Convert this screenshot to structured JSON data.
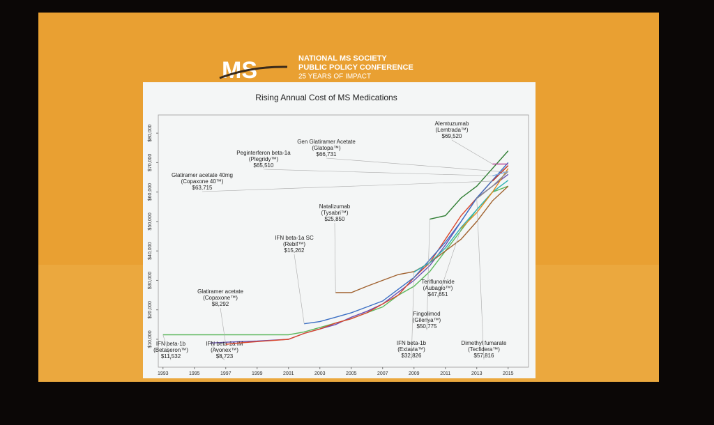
{
  "slide": {
    "logo": "MS",
    "org": "NATIONAL MS SOCIETY",
    "event": "PUBLIC POLICY CONFERENCE",
    "tagline": "25 YEARS OF IMPACT"
  },
  "chart_data": {
    "type": "line",
    "title": "Rising Annual Cost of MS Medications",
    "x": [
      1993,
      1994,
      1995,
      1996,
      1997,
      1998,
      1999,
      2000,
      2001,
      2002,
      2003,
      2004,
      2005,
      2006,
      2007,
      2008,
      2009,
      2010,
      2011,
      2012,
      2013,
      2014,
      2015
    ],
    "xlim": [
      1992.7,
      2016.3
    ],
    "xticks": [
      1993,
      1995,
      1997,
      1999,
      2001,
      2003,
      2005,
      2007,
      2009,
      2011,
      2013,
      2015
    ],
    "ylim": [
      1000,
      85000
    ],
    "yticks": [
      {
        "value": 10000,
        "label": "$10,000"
      },
      {
        "value": 20000,
        "label": "$20,000"
      },
      {
        "value": 30000,
        "label": "$30,000"
      },
      {
        "value": 40000,
        "label": "$40,000"
      },
      {
        "value": 50000,
        "label": "$50,000"
      },
      {
        "value": 60000,
        "label": "$60,000"
      },
      {
        "value": 70000,
        "label": "$70,000"
      },
      {
        "value": 80000,
        "label": "$80,000"
      }
    ],
    "series": [
      {
        "name": "IFN beta-1b",
        "brand": "(Betaseron™)",
        "color": "#5cb85c",
        "values": [
          11532,
          11532,
          11532,
          11532,
          11532,
          11532,
          11532,
          11532,
          11532,
          12500,
          14000,
          15500,
          17000,
          19000,
          21000,
          25000,
          28000,
          33000,
          40000,
          47000,
          54000,
          60000,
          62000
        ],
        "value_labels": [
          "$11,532",
          null,
          null,
          null,
          null,
          null,
          null,
          null,
          null,
          null,
          null,
          null,
          null,
          null,
          null,
          null,
          null,
          null,
          null,
          null,
          null,
          null,
          null
        ]
      },
      {
        "name": "IFN beta-1a IM",
        "brand": "(Avonex™)",
        "color": "#6a4fb3",
        "values": [
          null,
          null,
          null,
          8723,
          9000,
          9200,
          9400,
          9700,
          10000,
          12000,
          13500,
          15000,
          17500,
          19500,
          22000,
          26000,
          30000,
          35000,
          42000,
          50000,
          58000,
          62000,
          66000
        ],
        "value_labels": [
          null,
          null,
          null,
          "$8,723",
          null,
          null,
          null,
          null,
          null,
          null,
          null,
          null,
          null,
          null,
          null,
          null,
          null,
          null,
          null,
          null,
          null,
          null,
          null
        ]
      },
      {
        "name": "Glatiramer acetate",
        "brand": "(Copaxone™)",
        "color": "#d9462b",
        "values": [
          null,
          null,
          null,
          null,
          8292,
          8800,
          9200,
          9600,
          10000,
          12000,
          13500,
          15500,
          17000,
          19000,
          22000,
          25000,
          31000,
          36000,
          44000,
          52000,
          58000,
          64000,
          69000
        ],
        "value_labels": [
          null,
          null,
          null,
          null,
          "$8,292",
          null,
          null,
          null,
          null,
          null,
          null,
          null,
          null,
          null,
          null,
          null,
          null,
          null,
          null,
          null,
          null,
          null,
          null
        ]
      },
      {
        "name": "IFN beta-1a SC",
        "brand": "(Rebif™)",
        "color": "#3b6fc4",
        "values": [
          null,
          null,
          null,
          null,
          null,
          null,
          null,
          null,
          null,
          15262,
          16000,
          17500,
          19000,
          21000,
          23000,
          27000,
          31000,
          37000,
          43000,
          50000,
          58000,
          64000,
          70000
        ],
        "value_labels": [
          null,
          null,
          null,
          null,
          null,
          null,
          null,
          null,
          null,
          "$15,262",
          null,
          null,
          null,
          null,
          null,
          null,
          null,
          null,
          null,
          null,
          null,
          null,
          null
        ]
      },
      {
        "name": "Natalizumab",
        "brand": "(Tysabri™)",
        "color": "#a0612e",
        "values": [
          null,
          null,
          null,
          null,
          null,
          null,
          null,
          null,
          null,
          null,
          null,
          25850,
          25850,
          28000,
          30000,
          32000,
          33000,
          36000,
          40000,
          44000,
          50000,
          57000,
          62000
        ],
        "value_labels": [
          null,
          null,
          null,
          null,
          null,
          null,
          null,
          null,
          null,
          null,
          null,
          "$25,850",
          null,
          null,
          null,
          null,
          null,
          null,
          null,
          null,
          null,
          null,
          null
        ]
      },
      {
        "name": "IFN beta-1b",
        "brand": "(Extavia™)",
        "color": "#2fb3b3",
        "values": [
          null,
          null,
          null,
          null,
          null,
          null,
          null,
          null,
          null,
          null,
          null,
          null,
          null,
          null,
          null,
          null,
          32826,
          36000,
          41000,
          48000,
          54000,
          60000,
          64000
        ],
        "value_labels": [
          null,
          null,
          null,
          null,
          null,
          null,
          null,
          null,
          null,
          null,
          null,
          null,
          null,
          null,
          null,
          null,
          "$32,826",
          null,
          null,
          null,
          null,
          null,
          null
        ]
      },
      {
        "name": "Fingolimod",
        "brand": "(Gilenya™)",
        "color": "#2e7d32",
        "values": [
          null,
          null,
          null,
          null,
          null,
          null,
          null,
          null,
          null,
          null,
          null,
          null,
          null,
          null,
          null,
          null,
          null,
          50775,
          52000,
          58000,
          62000,
          68000,
          74000
        ],
        "value_labels": [
          null,
          null,
          null,
          null,
          null,
          null,
          null,
          null,
          null,
          null,
          null,
          null,
          null,
          null,
          null,
          null,
          null,
          "$50,775",
          null,
          null,
          null,
          null,
          null
        ]
      },
      {
        "name": "Teriflunomide",
        "brand": "(Aubagio™)",
        "color": "#e08a1e",
        "values": [
          null,
          null,
          null,
          null,
          null,
          null,
          null,
          null,
          null,
          null,
          null,
          null,
          null,
          null,
          null,
          null,
          null,
          null,
          null,
          47651,
          53000,
          60000,
          68000
        ],
        "value_labels": [
          null,
          null,
          null,
          null,
          null,
          null,
          null,
          null,
          null,
          null,
          null,
          null,
          null,
          null,
          null,
          null,
          null,
          null,
          null,
          "$47,651",
          null,
          null,
          null
        ]
      },
      {
        "name": "Dimethyl fumarate",
        "brand": "(Tecfidera™)",
        "color": "#8a8a8a",
        "values": [
          null,
          null,
          null,
          null,
          null,
          null,
          null,
          null,
          null,
          null,
          null,
          null,
          null,
          null,
          null,
          null,
          null,
          null,
          null,
          null,
          57816,
          62000,
          67000
        ],
        "value_labels": [
          null,
          null,
          null,
          null,
          null,
          null,
          null,
          null,
          null,
          null,
          null,
          null,
          null,
          null,
          null,
          null,
          null,
          null,
          null,
          null,
          "$57,816",
          null,
          null
        ]
      },
      {
        "name": "Glatiramer acetate 40mg",
        "brand": "(Copaxone 40™)",
        "color": "#c0392b",
        "values": [
          null,
          null,
          null,
          null,
          null,
          null,
          null,
          null,
          null,
          null,
          null,
          null,
          null,
          null,
          null,
          null,
          null,
          null,
          null,
          null,
          null,
          63715,
          69000
        ],
        "value_labels": [
          null,
          null,
          null,
          null,
          null,
          null,
          null,
          null,
          null,
          null,
          null,
          null,
          null,
          null,
          null,
          null,
          null,
          null,
          null,
          null,
          null,
          "$63,715",
          null
        ]
      },
      {
        "name": "Peginterferon beta-1a",
        "brand": "(Plegridy™)",
        "color": "#7fa7d9",
        "values": [
          null,
          null,
          null,
          null,
          null,
          null,
          null,
          null,
          null,
          null,
          null,
          null,
          null,
          null,
          null,
          null,
          null,
          null,
          null,
          null,
          null,
          65510,
          67000
        ],
        "value_labels": [
          null,
          null,
          null,
          null,
          null,
          null,
          null,
          null,
          null,
          null,
          null,
          null,
          null,
          null,
          null,
          null,
          null,
          null,
          null,
          null,
          null,
          "$65,510",
          null
        ]
      },
      {
        "name": "Alemtuzumab",
        "brand": "(Lemtrada™)",
        "color": "#b23a8e",
        "values": [
          null,
          null,
          null,
          null,
          null,
          null,
          null,
          null,
          null,
          null,
          null,
          null,
          null,
          null,
          null,
          null,
          null,
          null,
          null,
          null,
          null,
          69520,
          69520
        ],
        "value_labels": [
          null,
          null,
          null,
          null,
          null,
          null,
          null,
          null,
          null,
          null,
          null,
          null,
          null,
          null,
          null,
          null,
          null,
          null,
          null,
          null,
          null,
          "$69,520",
          null
        ]
      },
      {
        "name": "Gen Glatiramer Acetate",
        "brand": "(Glatopa™)",
        "color": "#9acd32",
        "values": [
          null,
          null,
          null,
          null,
          null,
          null,
          null,
          null,
          null,
          null,
          null,
          null,
          null,
          null,
          null,
          null,
          null,
          null,
          null,
          null,
          null,
          null,
          66731
        ],
        "value_labels": [
          null,
          null,
          null,
          null,
          null,
          null,
          null,
          null,
          null,
          null,
          null,
          null,
          null,
          null,
          null,
          null,
          null,
          null,
          null,
          null,
          null,
          null,
          "$66,731"
        ]
      }
    ]
  }
}
